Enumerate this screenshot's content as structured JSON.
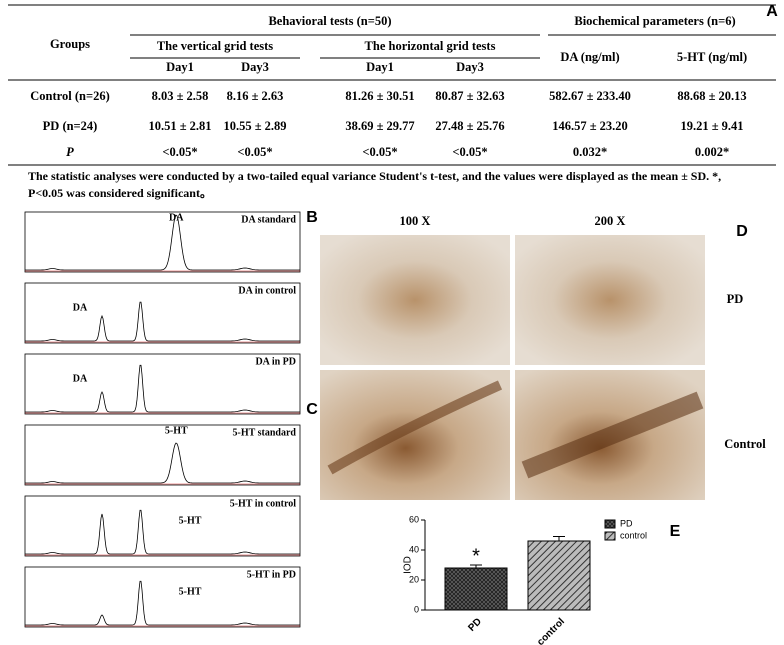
{
  "panel_letters": {
    "a": "A",
    "b": "B",
    "c": "C",
    "d": "D",
    "e": "E"
  },
  "table": {
    "group_header": "Groups",
    "behavioral": "Behavioral tests (n=50)",
    "biochemical": "Biochemical parameters (n=6)",
    "vertical": "The vertical grid tests",
    "horizontal": "The horizontal grid tests",
    "days": [
      "Day1",
      "Day3",
      "Day1",
      "Day3"
    ],
    "da": "DA (ng/ml)",
    "ht": "5-HT (ng/ml)",
    "rows": [
      [
        "Control (n=26)",
        "8.03 ± 2.58",
        "8.16 ± 2.63",
        "81.26 ± 30.51",
        "80.87 ± 32.63",
        "582.67 ± 233.40",
        "88.68 ± 20.13"
      ],
      [
        "PD (n=24)",
        "10.51 ± 2.81",
        "10.55 ± 2.89",
        "38.69 ± 29.77",
        "27.48 ± 25.76",
        "146.57 ± 23.20",
        "19.21 ± 9.41"
      ],
      [
        "P",
        "<0.05*",
        "<0.05*",
        "<0.05*",
        "<0.05*",
        "0.032*",
        "0.002*"
      ]
    ],
    "note": "The statistic analyses were conducted by a two-tailed equal variance Student's t-test, and the values were displayed as the mean ± SD. *, P<0.05 was considered significant。"
  },
  "chromatograms": [
    {
      "label": "DA standard",
      "peak": "DA"
    },
    {
      "label": "DA in control",
      "peak": "DA"
    },
    {
      "label": "DA in PD",
      "peak": "DA"
    },
    {
      "label": "5-HT standard",
      "peak": "5-HT"
    },
    {
      "label": "5-HT in control",
      "peak": "5-HT"
    },
    {
      "label": "5-HT in PD",
      "peak": "5-HT"
    }
  ],
  "micrographs": {
    "columns": [
      "100 X",
      "200 X"
    ],
    "rows": [
      "PD",
      "Control"
    ]
  },
  "chart_data": {
    "type": "bar",
    "ylabel": "IOD",
    "categories": [
      "PD",
      "control"
    ],
    "values": [
      28,
      46
    ],
    "errors": [
      2,
      3
    ],
    "ylim": [
      0,
      60
    ],
    "yticks": [
      0,
      20,
      40,
      60
    ],
    "annotations": [
      "*"
    ],
    "color": "#555555"
  }
}
